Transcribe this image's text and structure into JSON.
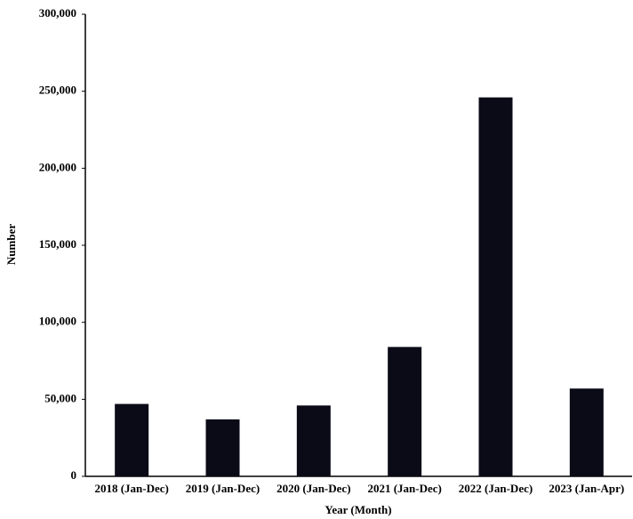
{
  "chart_data": {
    "type": "bar",
    "x_label": "Year (Month)",
    "y_label": "Number",
    "categories": [
      "2018 (Jan-Dec)",
      "2019 (Jan-Dec)",
      "2020 (Jan-Dec)",
      "2021 (Jan-Dec)",
      "2022 (Jan-Dec)",
      "2023 (Jan-Apr)"
    ],
    "values": [
      47000,
      37000,
      46000,
      84000,
      246000,
      57000
    ],
    "color": "#0b0b18",
    "ylim": [
      0,
      300000
    ],
    "yticks": [
      0,
      {
        "value": 50000,
        "label": "50,000"
      },
      {
        "value": 100000,
        "label": "100,000"
      },
      {
        "value": 150000,
        "label": "150,000"
      },
      {
        "value": 200000,
        "label": "200,000"
      },
      {
        "value": 250000,
        "label": "250,000"
      },
      {
        "value": 300000,
        "label": "300,000"
      }
    ],
    "grid": false
  }
}
